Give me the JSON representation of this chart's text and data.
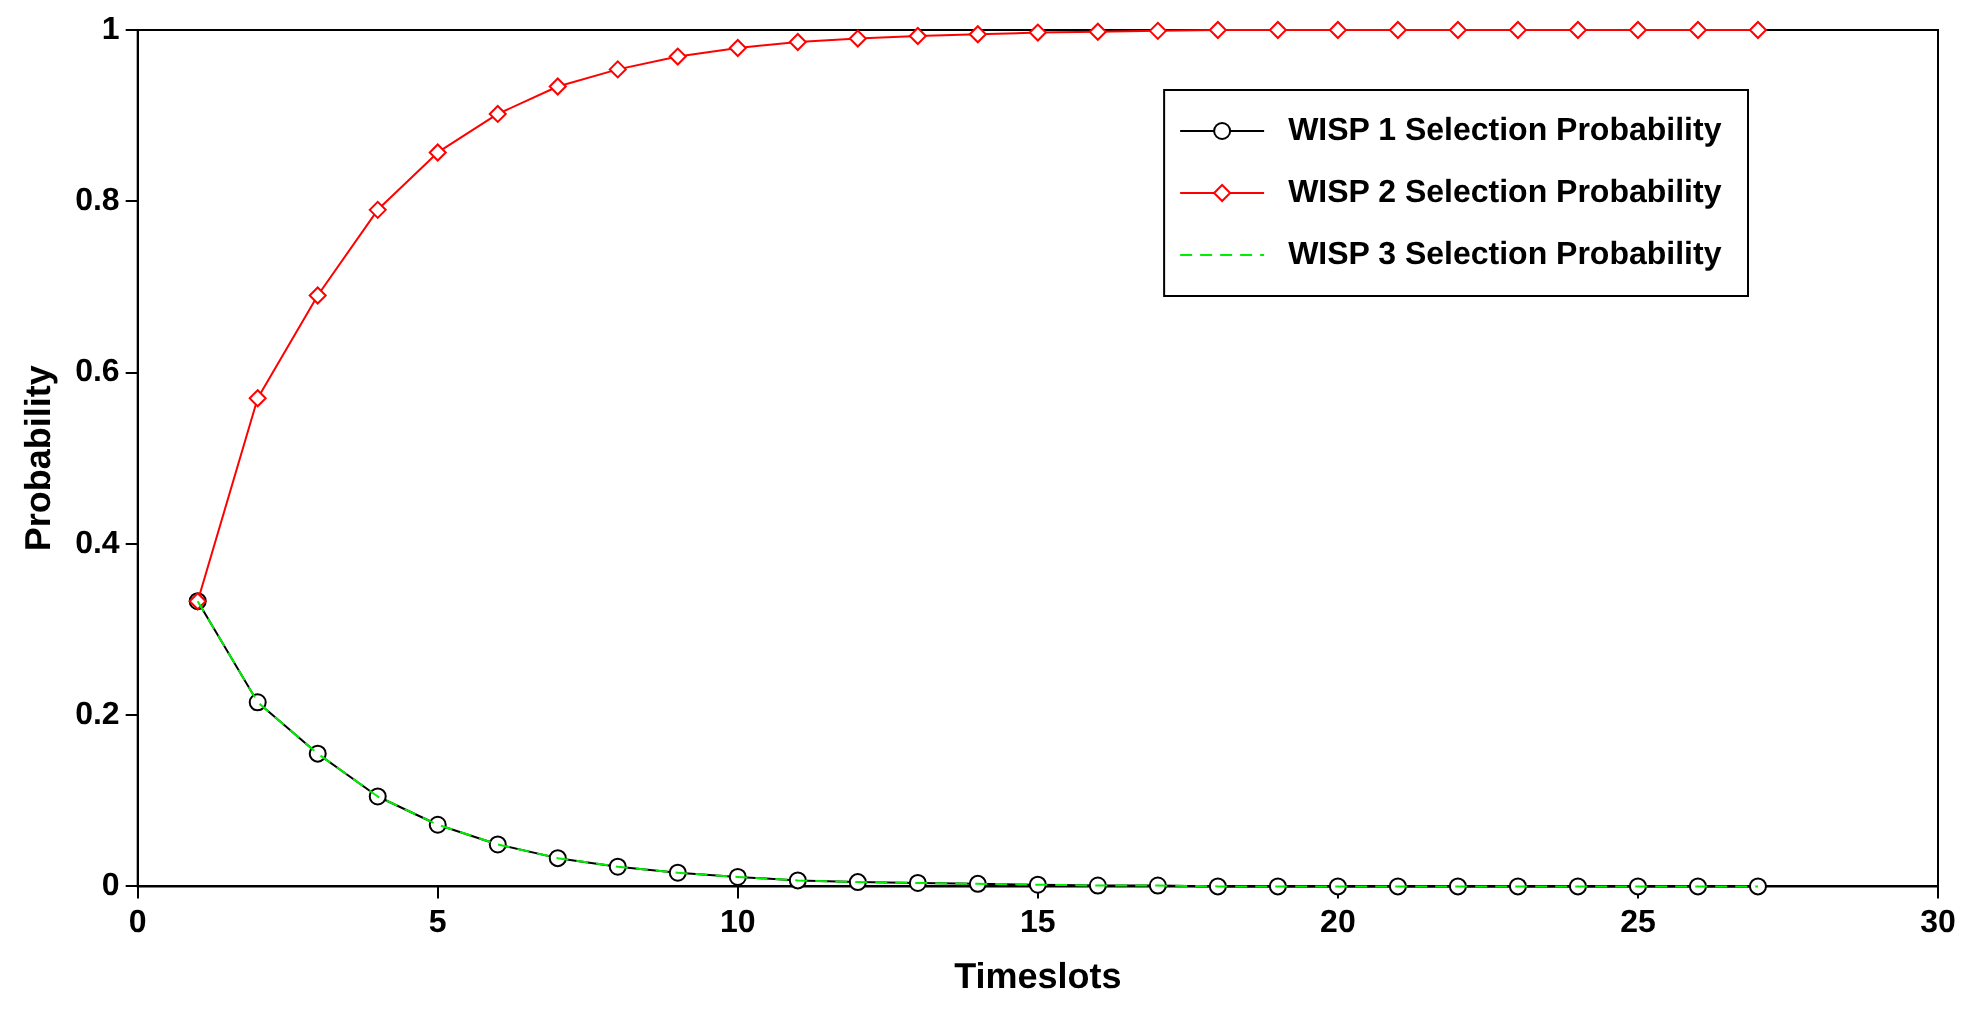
{
  "chart_data": {
    "type": "line",
    "xlabel": "Timeslots",
    "ylabel": "Probability",
    "x": [
      1,
      2,
      3,
      4,
      5,
      6,
      7,
      8,
      9,
      10,
      11,
      12,
      13,
      14,
      15,
      16,
      17,
      18,
      19,
      20,
      21,
      22,
      23,
      24,
      25,
      26,
      27
    ],
    "series": [
      {
        "name": "WISP 1 Selection Probability",
        "color": "#000000",
        "marker": "circle",
        "line_style": "solid",
        "values": [
          0.333,
          0.215,
          0.155,
          0.105,
          0.072,
          0.049,
          0.033,
          0.023,
          0.016,
          0.011,
          0.007,
          0.005,
          0.004,
          0.003,
          0.002,
          0.001,
          0.001,
          0,
          0,
          0,
          0,
          0,
          0,
          0,
          0,
          0,
          0
        ]
      },
      {
        "name": "WISP 2 Selection Probability",
        "color": "#ff0000",
        "marker": "diamond",
        "line_style": "solid",
        "values": [
          0.333,
          0.57,
          0.69,
          0.79,
          0.857,
          0.902,
          0.934,
          0.954,
          0.969,
          0.979,
          0.986,
          0.99,
          0.993,
          0.995,
          0.997,
          0.998,
          0.999,
          1,
          1,
          1,
          1,
          1,
          1,
          1,
          1,
          1,
          1
        ]
      },
      {
        "name": "WISP 3 Selection Probability",
        "color": "#00ee00",
        "marker": "none",
        "line_style": "dashed",
        "values": [
          0.333,
          0.215,
          0.155,
          0.105,
          0.072,
          0.049,
          0.033,
          0.023,
          0.016,
          0.011,
          0.007,
          0.005,
          0.004,
          0.003,
          0.002,
          0.001,
          0.001,
          0,
          0,
          0,
          0,
          0,
          0,
          0,
          0,
          0,
          0
        ]
      }
    ],
    "xlim": [
      0,
      30
    ],
    "xticks": [
      0,
      5,
      10,
      15,
      20,
      25,
      30
    ],
    "ylim": [
      0,
      1
    ],
    "yticks": [
      0,
      0.2,
      0.4,
      0.6,
      0.8,
      1
    ],
    "grid": false,
    "legend": "top right"
  }
}
